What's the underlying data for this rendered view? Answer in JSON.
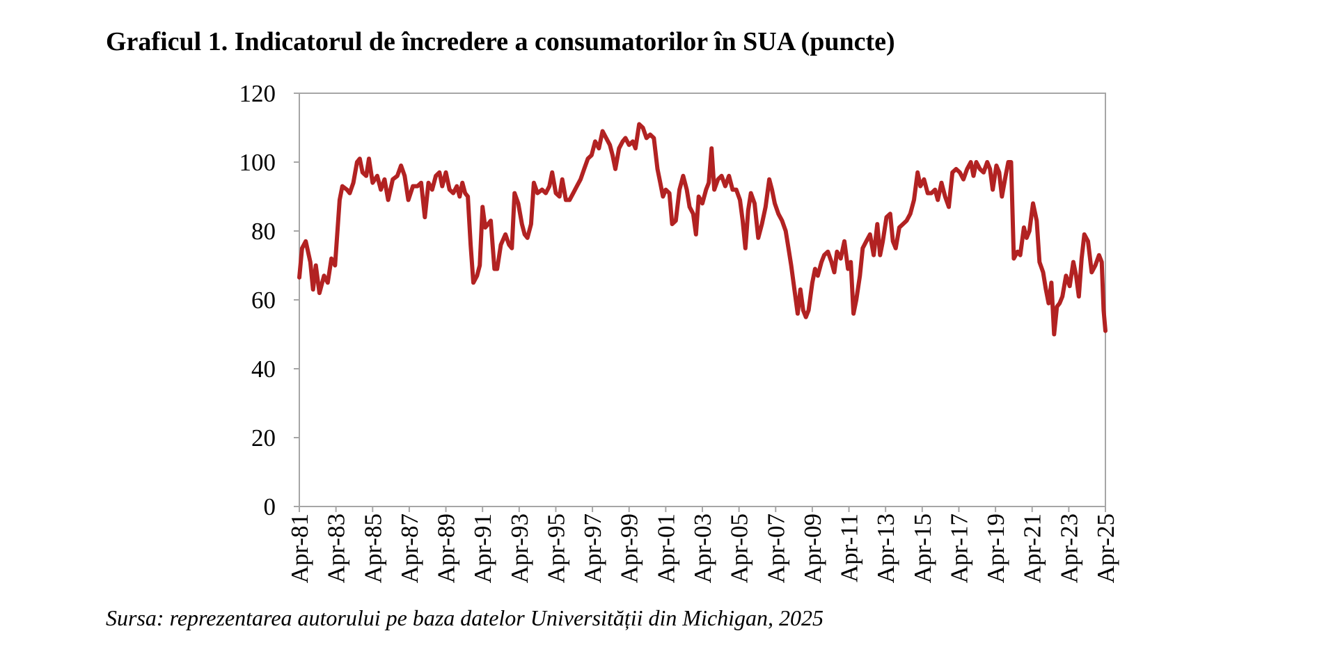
{
  "title": "Graficul 1. Indicatorul de încredere a consumatorilor în SUA (puncte)",
  "source": "Sursa: reprezentarea autorului pe baza datelor Universității din Michigan, 2025",
  "chart_data": {
    "type": "line",
    "title": "Graficul 1. Indicatorul de încredere a consumatorilor în SUA (puncte)",
    "xlabel": "",
    "ylabel": "",
    "ylim": [
      0,
      120
    ],
    "yticks": [
      0,
      20,
      40,
      60,
      80,
      100,
      120
    ],
    "xlim": [
      1981.25,
      2025.25
    ],
    "xticks": [
      {
        "x": 1981.25,
        "label": "Apr-81"
      },
      {
        "x": 1983.25,
        "label": "Apr-83"
      },
      {
        "x": 1985.25,
        "label": "Apr-85"
      },
      {
        "x": 1987.25,
        "label": "Apr-87"
      },
      {
        "x": 1989.25,
        "label": "Apr-89"
      },
      {
        "x": 1991.25,
        "label": "Apr-91"
      },
      {
        "x": 1993.25,
        "label": "Apr-93"
      },
      {
        "x": 1995.25,
        "label": "Apr-95"
      },
      {
        "x": 1997.25,
        "label": "Apr-97"
      },
      {
        "x": 1999.25,
        "label": "Apr-99"
      },
      {
        "x": 2001.25,
        "label": "Apr-01"
      },
      {
        "x": 2003.25,
        "label": "Apr-03"
      },
      {
        "x": 2005.25,
        "label": "Apr-05"
      },
      {
        "x": 2007.25,
        "label": "Apr-07"
      },
      {
        "x": 2009.25,
        "label": "Apr-09"
      },
      {
        "x": 2011.25,
        "label": "Apr-11"
      },
      {
        "x": 2013.25,
        "label": "Apr-13"
      },
      {
        "x": 2015.25,
        "label": "Apr-15"
      },
      {
        "x": 2017.25,
        "label": "Apr-17"
      },
      {
        "x": 2019.25,
        "label": "Apr-19"
      },
      {
        "x": 2021.25,
        "label": "Apr-21"
      },
      {
        "x": 2023.25,
        "label": "Apr-23"
      },
      {
        "x": 2025.25,
        "label": "Apr-25"
      }
    ],
    "grid": false,
    "legend": "none",
    "line_color": "#B22222",
    "series": [
      {
        "points": [
          [
            1981.25,
            66.5
          ],
          [
            1981.4,
            75
          ],
          [
            1981.6,
            77
          ],
          [
            1981.85,
            71
          ],
          [
            1982.0,
            63
          ],
          [
            1982.15,
            70
          ],
          [
            1982.35,
            62
          ],
          [
            1982.6,
            67
          ],
          [
            1982.8,
            65
          ],
          [
            1983.0,
            72
          ],
          [
            1983.2,
            70
          ],
          [
            1983.45,
            89
          ],
          [
            1983.6,
            93
          ],
          [
            1983.85,
            92
          ],
          [
            1984.0,
            91
          ],
          [
            1984.2,
            94
          ],
          [
            1984.4,
            100
          ],
          [
            1984.55,
            101
          ],
          [
            1984.7,
            97
          ],
          [
            1984.9,
            96
          ],
          [
            1985.05,
            101
          ],
          [
            1985.25,
            94
          ],
          [
            1985.5,
            96
          ],
          [
            1985.7,
            92
          ],
          [
            1985.9,
            95
          ],
          [
            1986.1,
            89
          ],
          [
            1986.35,
            95
          ],
          [
            1986.6,
            96
          ],
          [
            1986.8,
            99
          ],
          [
            1987.0,
            96
          ],
          [
            1987.2,
            89
          ],
          [
            1987.45,
            93
          ],
          [
            1987.7,
            93
          ],
          [
            1987.9,
            94
          ],
          [
            1988.1,
            84
          ],
          [
            1988.3,
            94
          ],
          [
            1988.5,
            92
          ],
          [
            1988.7,
            96
          ],
          [
            1988.9,
            97
          ],
          [
            1989.05,
            93
          ],
          [
            1989.25,
            97
          ],
          [
            1989.45,
            92
          ],
          [
            1989.65,
            91
          ],
          [
            1989.85,
            93
          ],
          [
            1990.0,
            90
          ],
          [
            1990.15,
            94
          ],
          [
            1990.3,
            91
          ],
          [
            1990.45,
            90
          ],
          [
            1990.6,
            76
          ],
          [
            1990.75,
            65
          ],
          [
            1990.95,
            67
          ],
          [
            1991.1,
            70
          ],
          [
            1991.25,
            87
          ],
          [
            1991.4,
            81
          ],
          [
            1991.55,
            82
          ],
          [
            1991.7,
            83
          ],
          [
            1991.9,
            69
          ],
          [
            1992.05,
            69
          ],
          [
            1992.25,
            76
          ],
          [
            1992.5,
            79
          ],
          [
            1992.7,
            76
          ],
          [
            1992.85,
            75
          ],
          [
            1993.0,
            91
          ],
          [
            1993.2,
            88
          ],
          [
            1993.4,
            82
          ],
          [
            1993.55,
            79
          ],
          [
            1993.7,
            78
          ],
          [
            1993.9,
            82
          ],
          [
            1994.05,
            94
          ],
          [
            1994.25,
            91
          ],
          [
            1994.5,
            92
          ],
          [
            1994.7,
            91
          ],
          [
            1994.9,
            93
          ],
          [
            1995.05,
            97
          ],
          [
            1995.25,
            91
          ],
          [
            1995.45,
            90
          ],
          [
            1995.6,
            95
          ],
          [
            1995.8,
            89
          ],
          [
            1996.0,
            89
          ],
          [
            1996.2,
            91
          ],
          [
            1996.4,
            93
          ],
          [
            1996.6,
            95
          ],
          [
            1996.8,
            98
          ],
          [
            1997.0,
            101
          ],
          [
            1997.2,
            102
          ],
          [
            1997.4,
            106
          ],
          [
            1997.6,
            104
          ],
          [
            1997.8,
            109
          ],
          [
            1998.0,
            107
          ],
          [
            1998.2,
            105
          ],
          [
            1998.35,
            102
          ],
          [
            1998.5,
            98
          ],
          [
            1998.7,
            104
          ],
          [
            1998.9,
            106
          ],
          [
            1999.05,
            107
          ],
          [
            1999.25,
            105
          ],
          [
            1999.45,
            106
          ],
          [
            1999.6,
            104
          ],
          [
            1999.8,
            111
          ],
          [
            2000.0,
            110
          ],
          [
            2000.2,
            107
          ],
          [
            2000.4,
            108
          ],
          [
            2000.6,
            107
          ],
          [
            2000.8,
            98
          ],
          [
            2000.95,
            94
          ],
          [
            2001.1,
            90
          ],
          [
            2001.25,
            92
          ],
          [
            2001.45,
            91
          ],
          [
            2001.6,
            82
          ],
          [
            2001.8,
            83
          ],
          [
            2002.0,
            92
          ],
          [
            2002.2,
            96
          ],
          [
            2002.4,
            92
          ],
          [
            2002.55,
            87
          ],
          [
            2002.75,
            85
          ],
          [
            2002.9,
            79
          ],
          [
            2003.05,
            90
          ],
          [
            2003.25,
            88
          ],
          [
            2003.45,
            92
          ],
          [
            2003.6,
            94
          ],
          [
            2003.75,
            104
          ],
          [
            2003.9,
            92
          ],
          [
            2004.1,
            95
          ],
          [
            2004.3,
            96
          ],
          [
            2004.5,
            93
          ],
          [
            2004.7,
            96
          ],
          [
            2004.9,
            92
          ],
          [
            2005.1,
            92
          ],
          [
            2005.3,
            89
          ],
          [
            2005.45,
            83
          ],
          [
            2005.6,
            75
          ],
          [
            2005.75,
            86
          ],
          [
            2005.9,
            91
          ],
          [
            2006.1,
            88
          ],
          [
            2006.3,
            78
          ],
          [
            2006.5,
            82
          ],
          [
            2006.7,
            87
          ],
          [
            2006.9,
            95
          ],
          [
            2007.05,
            92
          ],
          [
            2007.2,
            88
          ],
          [
            2007.4,
            85
          ],
          [
            2007.6,
            83
          ],
          [
            2007.8,
            80
          ],
          [
            2007.95,
            75
          ],
          [
            2008.1,
            70
          ],
          [
            2008.3,
            62
          ],
          [
            2008.45,
            56
          ],
          [
            2008.6,
            63
          ],
          [
            2008.75,
            57
          ],
          [
            2008.9,
            55
          ],
          [
            2009.05,
            57
          ],
          [
            2009.25,
            65
          ],
          [
            2009.4,
            69
          ],
          [
            2009.55,
            67
          ],
          [
            2009.75,
            71
          ],
          [
            2009.9,
            73
          ],
          [
            2010.1,
            74
          ],
          [
            2010.3,
            71
          ],
          [
            2010.45,
            68
          ],
          [
            2010.6,
            74
          ],
          [
            2010.8,
            72
          ],
          [
            2011.0,
            77
          ],
          [
            2011.2,
            69
          ],
          [
            2011.35,
            71
          ],
          [
            2011.5,
            56
          ],
          [
            2011.65,
            60
          ],
          [
            2011.85,
            67
          ],
          [
            2012.0,
            75
          ],
          [
            2012.2,
            77
          ],
          [
            2012.4,
            79
          ],
          [
            2012.6,
            73
          ],
          [
            2012.8,
            82
          ],
          [
            2012.95,
            73
          ],
          [
            2013.1,
            77
          ],
          [
            2013.3,
            84
          ],
          [
            2013.5,
            85
          ],
          [
            2013.65,
            77
          ],
          [
            2013.8,
            75
          ],
          [
            2014.0,
            81
          ],
          [
            2014.2,
            82
          ],
          [
            2014.4,
            83
          ],
          [
            2014.6,
            85
          ],
          [
            2014.8,
            89
          ],
          [
            2015.0,
            97
          ],
          [
            2015.15,
            93
          ],
          [
            2015.35,
            95
          ],
          [
            2015.55,
            91
          ],
          [
            2015.75,
            91
          ],
          [
            2015.95,
            92
          ],
          [
            2016.1,
            89
          ],
          [
            2016.3,
            94
          ],
          [
            2016.5,
            90
          ],
          [
            2016.7,
            87
          ],
          [
            2016.9,
            97
          ],
          [
            2017.1,
            98
          ],
          [
            2017.3,
            97
          ],
          [
            2017.5,
            95
          ],
          [
            2017.7,
            98
          ],
          [
            2017.9,
            100
          ],
          [
            2018.05,
            96
          ],
          [
            2018.2,
            100
          ],
          [
            2018.4,
            98
          ],
          [
            2018.6,
            97
          ],
          [
            2018.8,
            100
          ],
          [
            2018.95,
            98
          ],
          [
            2019.1,
            92
          ],
          [
            2019.3,
            99
          ],
          [
            2019.45,
            97
          ],
          [
            2019.6,
            90
          ],
          [
            2019.8,
            96
          ],
          [
            2019.95,
            100
          ],
          [
            2020.1,
            100
          ],
          [
            2020.25,
            72
          ],
          [
            2020.45,
            74
          ],
          [
            2020.6,
            73
          ],
          [
            2020.8,
            81
          ],
          [
            2020.95,
            78
          ],
          [
            2021.1,
            80
          ],
          [
            2021.3,
            88
          ],
          [
            2021.5,
            83
          ],
          [
            2021.65,
            71
          ],
          [
            2021.85,
            68
          ],
          [
            2022.0,
            63
          ],
          [
            2022.15,
            59
          ],
          [
            2022.3,
            65
          ],
          [
            2022.45,
            50
          ],
          [
            2022.6,
            58
          ],
          [
            2022.75,
            59
          ],
          [
            2022.9,
            61
          ],
          [
            2023.1,
            67
          ],
          [
            2023.3,
            64
          ],
          [
            2023.5,
            71
          ],
          [
            2023.65,
            67
          ],
          [
            2023.8,
            61
          ],
          [
            2023.95,
            72
          ],
          [
            2024.1,
            79
          ],
          [
            2024.3,
            77
          ],
          [
            2024.5,
            68
          ],
          [
            2024.7,
            70
          ],
          [
            2024.9,
            73
          ],
          [
            2025.05,
            71
          ],
          [
            2025.15,
            57
          ],
          [
            2025.25,
            51
          ]
        ]
      }
    ]
  }
}
